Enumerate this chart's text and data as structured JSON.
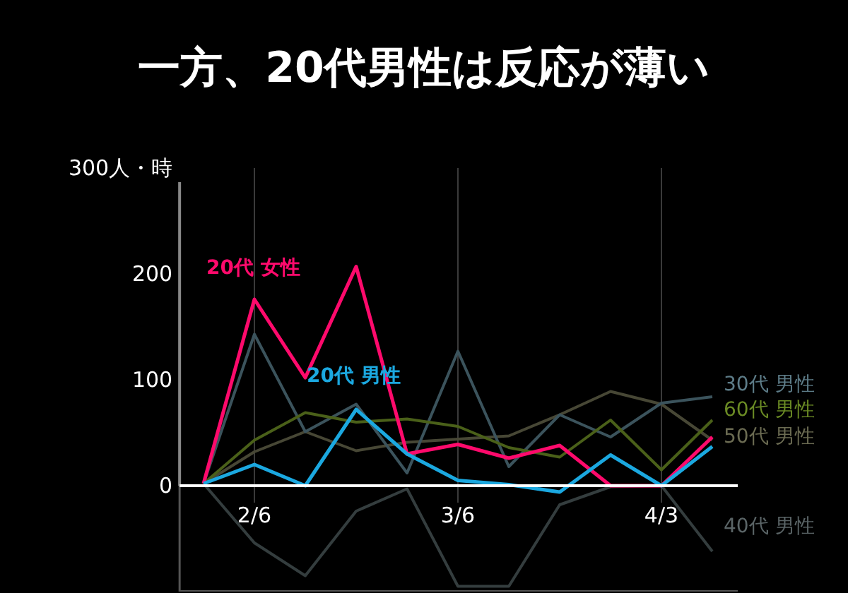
{
  "chart_data": {
    "type": "line",
    "title": "一方、20代男性は反応が薄い",
    "categories": [
      null,
      "2/6",
      null,
      null,
      null,
      "3/6",
      null,
      null,
      null,
      "4/3",
      null
    ],
    "ylim": [
      -100,
      300
    ],
    "yticks": [
      0,
      100,
      200,
      {
        "value": 300,
        "label": "300人・時"
      }
    ],
    "grid": "x",
    "legend": false,
    "marker": "none",
    "line_style": "solid",
    "series": [
      {
        "name": "40代 男性",
        "color": "#343d3e",
        "values": [
          2,
          -54,
          -85,
          -24,
          -3,
          -95,
          -95,
          -18,
          -1,
          0,
          -62
        ]
      },
      {
        "name": "50代 男性",
        "color": "#474735",
        "values": [
          2,
          32,
          51,
          33,
          41,
          44,
          47,
          67,
          89,
          77,
          43
        ]
      },
      {
        "name": "30代 男性",
        "color": "#3b535c",
        "values": [
          2,
          143,
          51,
          77,
          12,
          127,
          18,
          67,
          46,
          78,
          84
        ]
      },
      {
        "name": "60代 男性",
        "color": "#4a6019",
        "values": [
          2,
          43,
          69,
          60,
          63,
          56,
          36,
          27,
          62,
          15,
          62
        ]
      },
      {
        "name": "20代 女性",
        "color": "#ff0a6c",
        "values": [
          2,
          176,
          102,
          207,
          30,
          39,
          26,
          38,
          0,
          0,
          46
        ]
      },
      {
        "name": "20代 男性",
        "color": "#1ba8e0",
        "values": [
          2,
          20,
          0,
          72,
          30,
          5,
          1,
          -6,
          29,
          0,
          37
        ]
      }
    ]
  }
}
